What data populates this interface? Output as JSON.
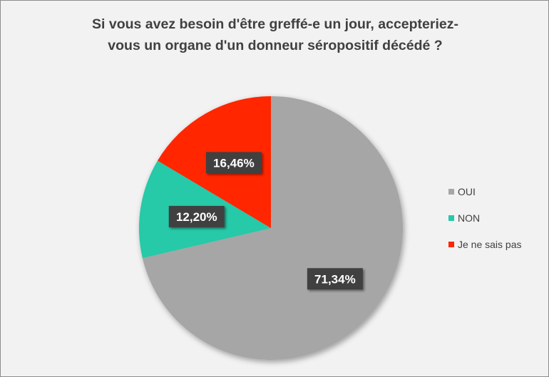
{
  "chart_data": {
    "type": "pie",
    "title_lines": [
      "Si vous avez besoin d'être greffé-e un jour,  accepteriez-",
      "vous un organe d'un donneur séropositif décédé ?"
    ],
    "slices": [
      {
        "name": "OUI",
        "value": 71.34,
        "label": "71,34%",
        "color": "#a6a6a6"
      },
      {
        "name": "NON",
        "value": 12.2,
        "label": "12,20%",
        "color": "#26c9a8"
      },
      {
        "name": "Je ne sais pas",
        "value": 16.46,
        "label": "16,46%",
        "color": "#ff2600"
      }
    ],
    "legend_position": "right"
  }
}
